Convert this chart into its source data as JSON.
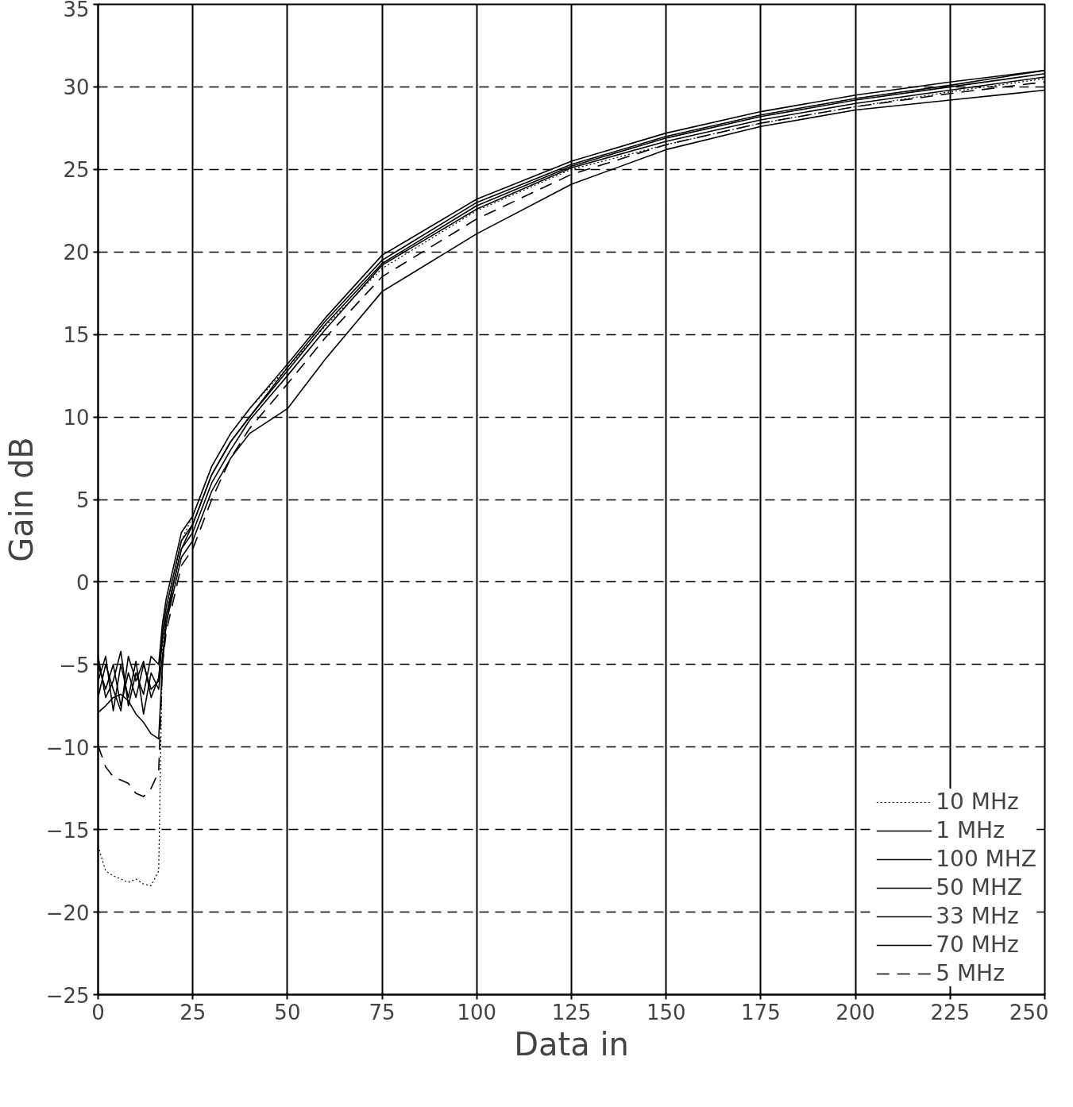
{
  "chart_data": {
    "type": "line",
    "xlabel": "Data in",
    "ylabel": "Gain dB",
    "x": [
      0,
      2,
      4,
      6,
      8,
      10,
      12,
      14,
      16,
      17,
      18,
      20,
      22,
      25,
      30,
      35,
      40,
      50,
      60,
      75,
      100,
      125,
      150,
      175,
      200,
      225,
      250
    ],
    "series": [
      {
        "name": "10 MHz",
        "color": "#000000",
        "line_style": "dotted",
        "values": [
          -16,
          -17.5,
          -17.8,
          -18,
          -18.2,
          -18,
          -18.3,
          -18.4,
          -17.5,
          -4,
          -2,
          0.5,
          2.5,
          4,
          7,
          9,
          10.5,
          13,
          15.5,
          19,
          22.5,
          25,
          26.5,
          27.8,
          28.8,
          29.7,
          30.5
        ]
      },
      {
        "name": "1 MHz",
        "color": "#000000",
        "line_style": "solid",
        "values": [
          -5,
          -6.5,
          -5,
          -7.5,
          -5.5,
          -7,
          -5,
          -6.5,
          -6,
          -3,
          -1.5,
          0.5,
          2.5,
          3.5,
          6.5,
          8.5,
          10,
          13,
          15.8,
          19.5,
          23,
          25.3,
          27,
          28.3,
          29.3,
          30.1,
          31
        ]
      },
      {
        "name": "100 MHZ",
        "color": "#000000",
        "line_style": "solid",
        "values": [
          -6,
          -4.5,
          -7.8,
          -5,
          -7,
          -4.8,
          -8,
          -5.5,
          -6.5,
          -4.5,
          -2.5,
          -0.5,
          1.5,
          2.5,
          5.5,
          7.5,
          9,
          10.5,
          13.5,
          17.6,
          21.1,
          24.1,
          26.2,
          27.6,
          28.6,
          29.2,
          29.8
        ]
      },
      {
        "name": "50 MHZ",
        "color": "#000000",
        "line_style": "solid",
        "values": [
          -4.5,
          -7,
          -6,
          -4.2,
          -7.5,
          -5.5,
          -6.8,
          -4.5,
          -5,
          -2.5,
          -1,
          1,
          3,
          4,
          7,
          9,
          10.5,
          13.2,
          16,
          19.8,
          23.2,
          25.5,
          27.2,
          28.5,
          29.5,
          30.3,
          31
        ]
      },
      {
        "name": "33 MHz",
        "color": "#000000",
        "line_style": "solid",
        "values": [
          -7,
          -5,
          -6.5,
          -7.8,
          -4.5,
          -6,
          -4.8,
          -7,
          -5.8,
          -3.5,
          -2,
          0,
          2,
          3.5,
          6.5,
          8.5,
          10,
          12.8,
          15.6,
          19.3,
          22.8,
          25.2,
          26.9,
          28.2,
          29.2,
          30,
          30.8
        ]
      },
      {
        "name": "70 MHz",
        "color": "#000000",
        "line_style": "solid",
        "values": [
          -7.9,
          -7.5,
          -7,
          -6.8,
          -7.2,
          -8,
          -8.5,
          -9.2,
          -9.5,
          -5,
          -2.5,
          0,
          2,
          3,
          6,
          8,
          9.8,
          12.5,
          15.3,
          19.2,
          22.6,
          25.1,
          26.7,
          28,
          29,
          29.8,
          30.6
        ]
      },
      {
        "name": "5 MHz",
        "color": "#000000",
        "line_style": "dashed",
        "values": [
          -9.9,
          -11.2,
          -11.8,
          -12,
          -12.2,
          -12.8,
          -13,
          -12.5,
          -11.5,
          -5,
          -3,
          -1,
          1,
          2,
          5,
          7.5,
          9.3,
          12,
          14.8,
          18.5,
          22,
          24.7,
          26.5,
          27.8,
          28.8,
          29.6,
          30.3
        ]
      }
    ],
    "xlim": [
      0,
      250
    ],
    "xticks": [
      0,
      25,
      50,
      75,
      100,
      125,
      150,
      175,
      200,
      225,
      250
    ],
    "ylim": [
      -25,
      35
    ],
    "yticks": [
      -25,
      -20,
      -15,
      -10,
      -5,
      0,
      5,
      10,
      15,
      20,
      25,
      30,
      35
    ],
    "grid": true,
    "legend": "bottom right"
  }
}
